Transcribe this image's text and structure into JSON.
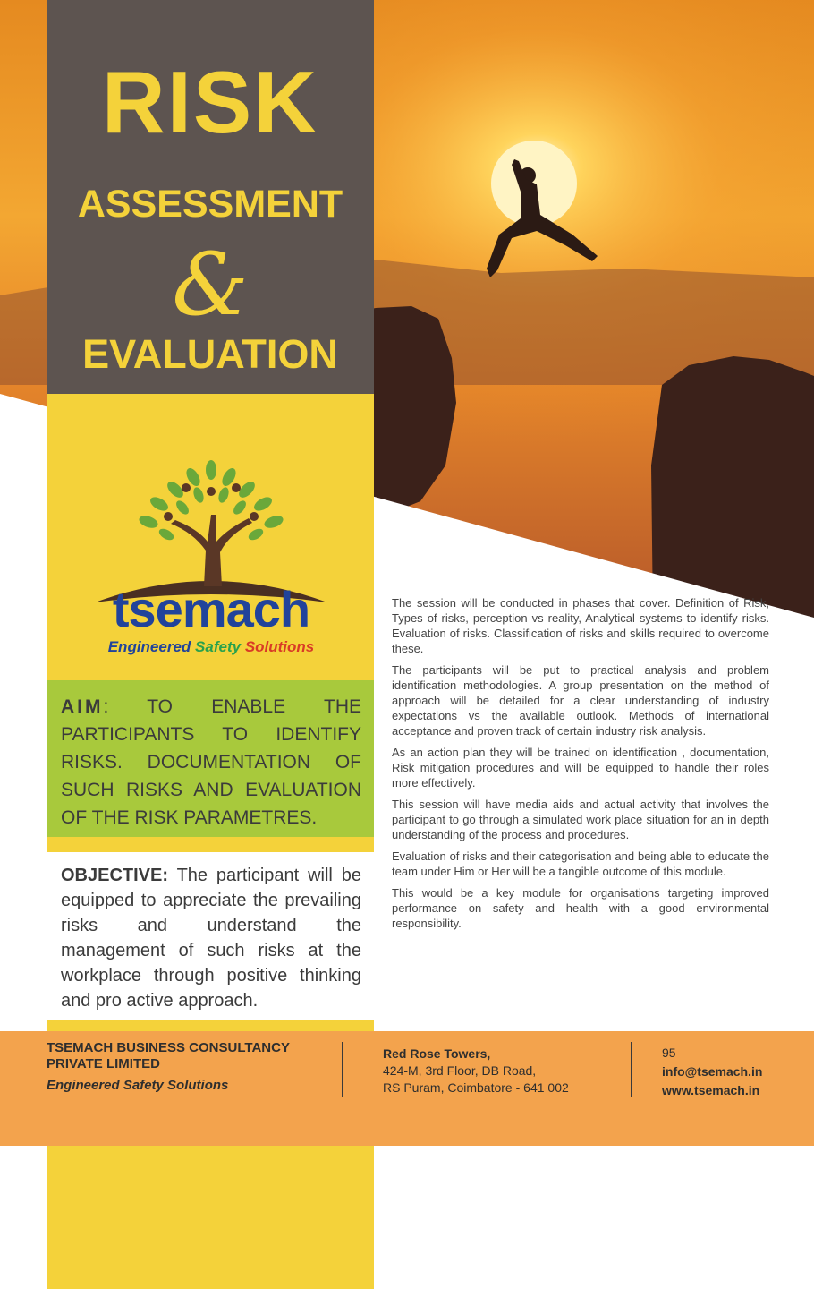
{
  "title": {
    "line1": "RISK",
    "line2": "ASSESSMENT",
    "line3": "&",
    "line4": "EVALUATION"
  },
  "brand": {
    "name": "tsemach",
    "tagline_1": "Engineered",
    "tagline_2": "Safety",
    "tagline_3": "Solutions"
  },
  "aim": {
    "label": "AIM",
    "text": ": TO ENABLE THE PARTICIPANTS TO IDENTIFY RISKS. DOCUMENTATION OF SUCH RISKS AND EVALUATION OF THE RISK PARAMETRES."
  },
  "objective": {
    "label": "OBJECTIVE:",
    "text": " The participant will be equipped to appreciate the prevailing risks and understand the management of such risks at the workplace through positive thinking and pro active approach."
  },
  "body": {
    "p1": "The session will be conducted in phases that cover. Definition of Risk, Types of risks, perception vs reality, Analytical systems to identify risks. Evaluation of risks. Classification of risks and skills required to overcome these.",
    "p2": "The participants will be put to practical analysis and problem identification methodologies. A group presentation on the method of approach will be detailed for a clear understanding of industry expectations vs the available outlook. Methods of international acceptance and proven track of certain industry risk analysis.",
    "p3": "As an action plan they will be trained on identification , documentation, Risk mitigation procedures and will be equipped to handle their roles more effectively.",
    "p4": "This session will have media aids and actual activity that involves the participant to go through a simulated work place situation for an in depth understanding of the process and procedures.",
    "p5": "Evaluation of risks and their categorisation and being able to educate the team under Him or Her will be a tangible outcome of this module.",
    "p6": "This would be a key module for organisations targeting improved performance on safety and health with a good environmental responsibility."
  },
  "footer": {
    "company_line1": "TSEMACH BUSINESS CONSULTANCY",
    "company_line2": "PRIVATE LIMITED",
    "company_tagline": "Engineered Safety Solutions",
    "address_name": "Red Rose Towers,",
    "address_line1": "424-M, 3rd Floor, DB Road,",
    "address_line2": "RS Puram, Coimbatore - 641 002",
    "number": "95",
    "email": "info@tsemach.in",
    "website": "www.tsemach.in"
  },
  "colors": {
    "yellow": "#f4d23a",
    "dark": "#5d5450",
    "green": "#a8c93c",
    "orange": "#f3a34d",
    "brand_blue": "#21439b"
  }
}
